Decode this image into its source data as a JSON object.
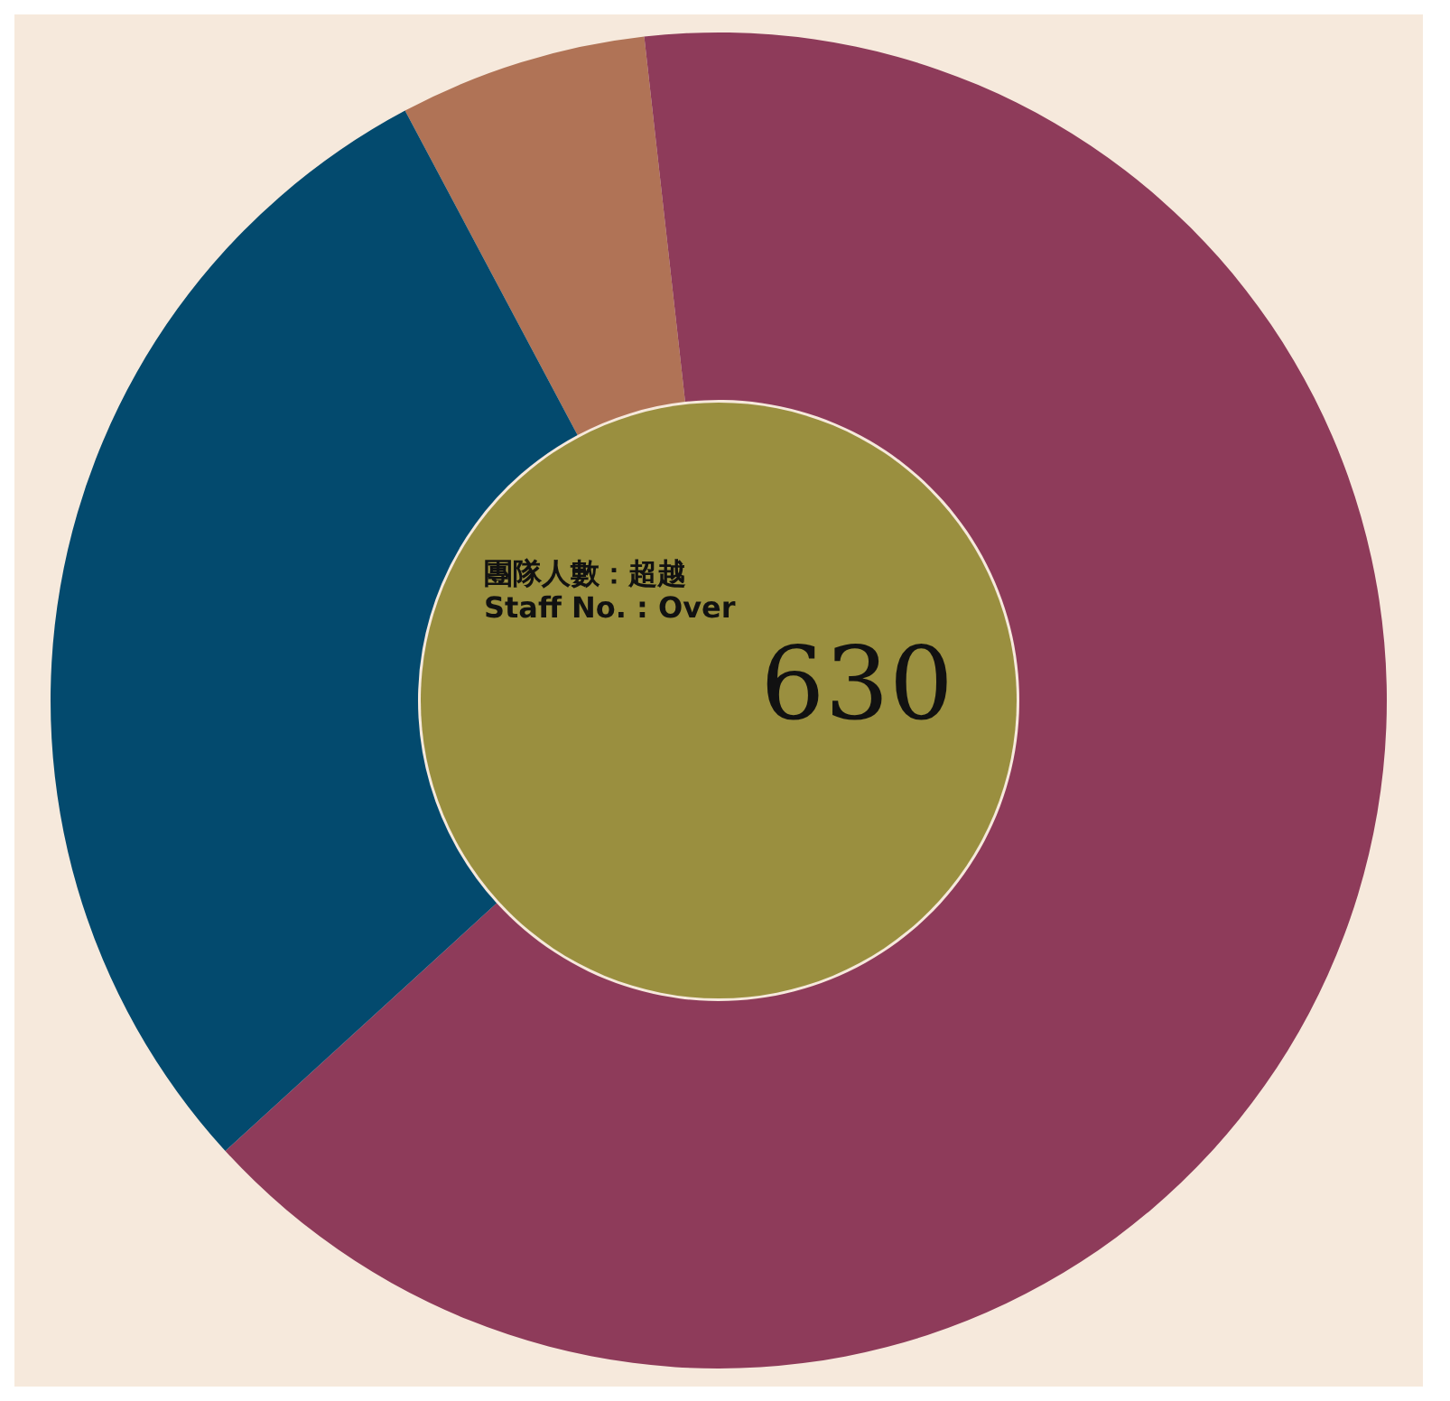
{
  "chart_data": {
    "type": "donut",
    "categories": [
      null,
      null,
      null
    ],
    "values": [
      6,
      65,
      29
    ],
    "colors": [
      "#b07356",
      "#8e3b5a",
      "#034a6e"
    ],
    "annotations": [
      "團隊人數：超越",
      "Staff No. : Over",
      "630"
    ],
    "legend": false
  }
}
